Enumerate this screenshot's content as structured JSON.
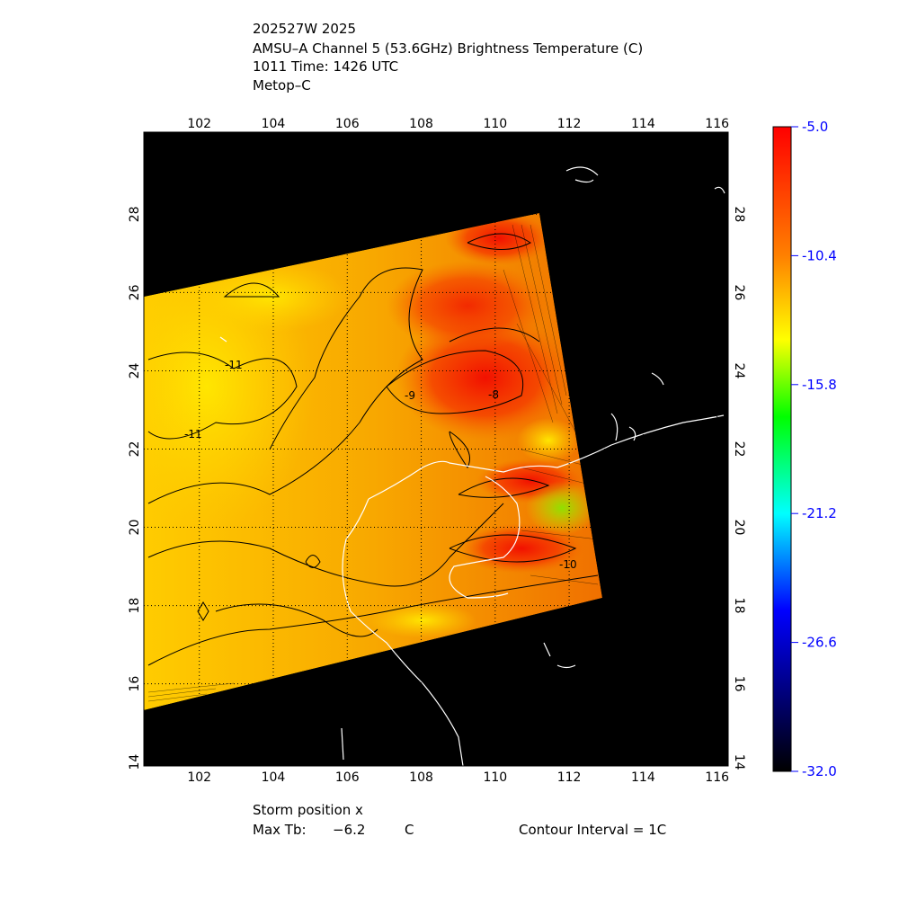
{
  "header": {
    "storm_id": "202527W 2025",
    "product": "AMSU–A Channel 5 (53.6GHz) Brightness Temperature (C)",
    "time": "1011 Time: 1426 UTC",
    "satellite": "Metop–C"
  },
  "footer": {
    "storm_position": "Storm position x",
    "max_tb_label": "Max Tb:",
    "max_tb_value": "−6.2",
    "max_tb_unit": "C",
    "contour_interval": "Contour Interval = 1C"
  },
  "chart_data": {
    "type": "heatmap",
    "title": "AMSU–A Channel 5 (53.6GHz) Brightness Temperature (C)",
    "x_ticks": [
      "102",
      "104",
      "106",
      "108",
      "110",
      "112",
      "114",
      "116"
    ],
    "y_ticks": [
      "14",
      "16",
      "18",
      "20",
      "22",
      "24",
      "26",
      "28"
    ],
    "xlim": [
      100.5,
      116.3
    ],
    "ylim": [
      13.9,
      30.1
    ],
    "grid": true,
    "contour_interval_c": 1,
    "contour_labels": [
      "-11",
      "-11",
      "-9",
      "-8",
      "-10"
    ],
    "max_tb_c": -6.2,
    "colorbar": {
      "ticks": [
        "-5.0",
        "-10.4",
        "-15.8",
        "-21.2",
        "-26.6",
        "-32.0"
      ],
      "range": [
        -32.0,
        -5.0
      ],
      "colors": [
        "#ff0000",
        "#ff8000",
        "#ffff00",
        "#00ff00",
        "#00ffff",
        "#0000ff",
        "#000000"
      ]
    },
    "background_color": "#000000",
    "coastline_color": "#ffffff"
  }
}
